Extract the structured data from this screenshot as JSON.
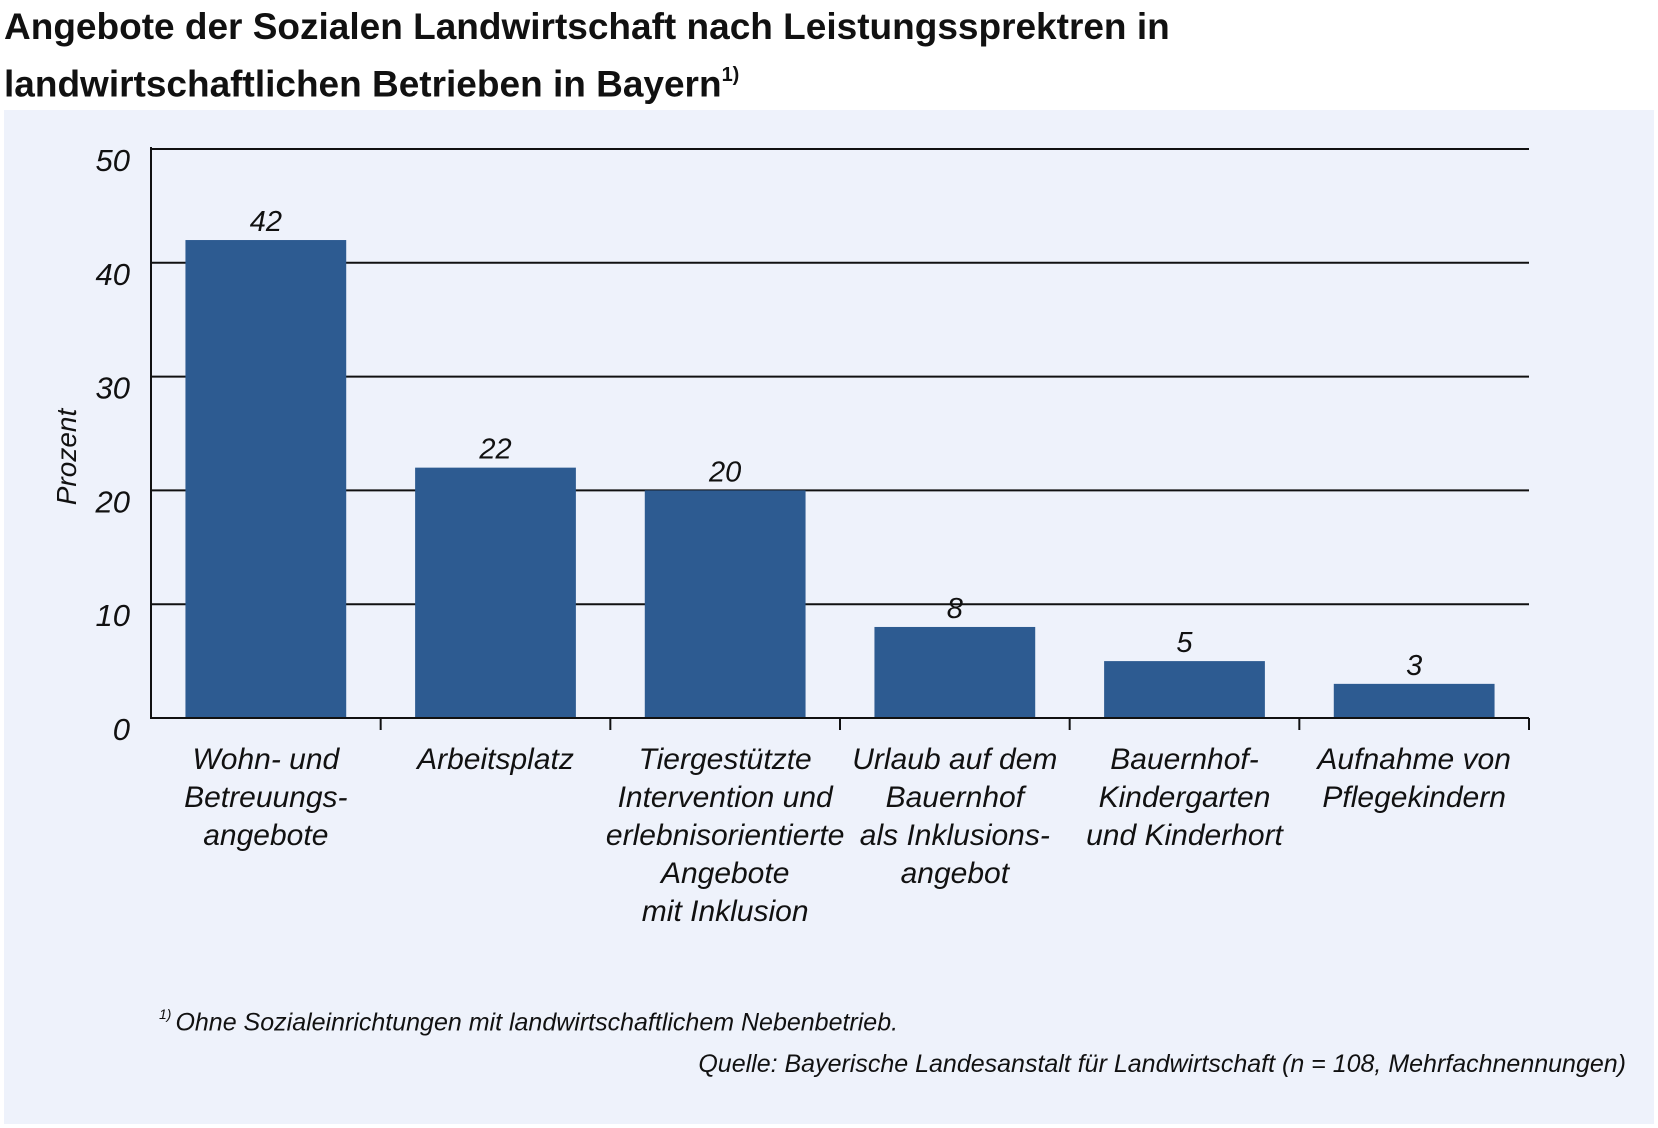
{
  "header": {
    "title_line1": "Angebote der Sozialen Landwirtschaft nach Leistungssprektren in",
    "title_line2": "landwirtschaftlichen Betrieben in Bayern",
    "title_note_marker": "1)"
  },
  "chart_data": {
    "type": "bar",
    "title": "Angebote der Sozialen Landwirtschaft nach Leistungssprektren in landwirtschaftlichen Betrieben in Bayern",
    "ylabel": "Prozent",
    "xlabel": "",
    "ylim": [
      0,
      50
    ],
    "yticks": [
      "0",
      "10",
      "20",
      "30",
      "40",
      "50"
    ],
    "grid": true,
    "bar_color": "#2d5b91",
    "categories": [
      [
        "Wohn- und",
        "Betreuungs-",
        "angebote"
      ],
      [
        "Arbeitsplatz"
      ],
      [
        "Tiergestützte",
        "Intervention und",
        "erlebnisorientierte",
        "Angebote",
        "mit Inklusion"
      ],
      [
        "Urlaub auf dem",
        "Bauernhof",
        "als Inklusions-",
        "angebot"
      ],
      [
        "Bauernhof-",
        "Kindergarten",
        "und Kinderhort"
      ],
      [
        "Aufnahme von",
        "Pflegekindern"
      ]
    ],
    "values": [
      42,
      22,
      20,
      8,
      5,
      3
    ],
    "value_labels": [
      "42",
      "22",
      "20",
      "8",
      "5",
      "3"
    ]
  },
  "footer": {
    "note_marker": "1)",
    "note": "Ohne Sozialeinrichtungen mit landwirtschaftlichem Nebenbetrieb.",
    "source": "Quelle: Bayerische Landesanstalt für Landwirtschaft (n = 108, Mehrfachnennungen)"
  }
}
